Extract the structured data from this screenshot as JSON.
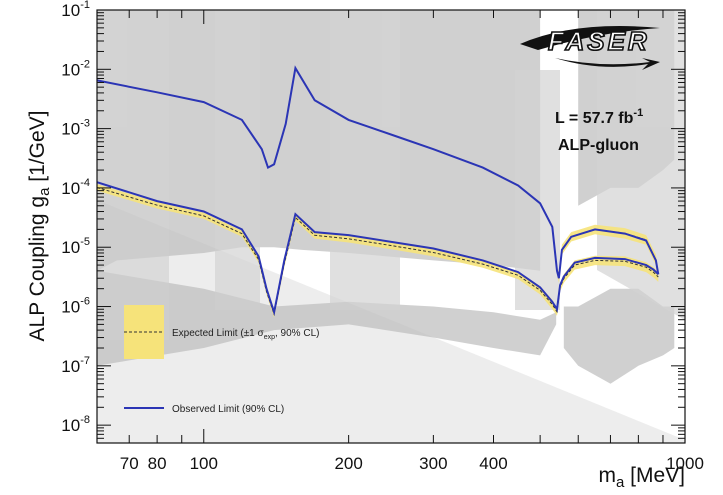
{
  "chart_data": {
    "type": "line",
    "title": "",
    "xlabel": "m",
    "xlabel_sub": "a",
    "xlabel_unit": " [MeV]",
    "ylabel": "ALP Coupling g",
    "ylabel_sub": "a",
    "ylabel_unit": " [1/GeV]",
    "x_scale": "log",
    "y_scale": "log",
    "xlim": [
      60,
      1000
    ],
    "ylim": [
      5e-09,
      0.1
    ],
    "x_tick_labels": [
      {
        "value": 70,
        "label": "70"
      },
      {
        "value": 80,
        "label": "80"
      },
      {
        "value": 100,
        "label": "100"
      },
      {
        "value": 200,
        "label": "200"
      },
      {
        "value": 300,
        "label": "300"
      },
      {
        "value": 400,
        "label": "400"
      },
      {
        "value": 1000,
        "label": "1000"
      }
    ],
    "y_tick_labels": [
      {
        "value": 1e-08,
        "mant": "10",
        "exp": "-8"
      },
      {
        "value": 1e-07,
        "mant": "10",
        "exp": "-7"
      },
      {
        "value": 1e-06,
        "mant": "10",
        "exp": "-6"
      },
      {
        "value": 1e-05,
        "mant": "10",
        "exp": "-5"
      },
      {
        "value": 0.0001,
        "mant": "10",
        "exp": "-4"
      },
      {
        "value": 0.001,
        "mant": "10",
        "exp": "-3"
      },
      {
        "value": 0.01,
        "mant": "10",
        "exp": "-2"
      },
      {
        "value": 0.1,
        "mant": "10",
        "exp": "-1"
      }
    ],
    "annotations": {
      "luminosity_prefix": "L = 57.7 fb",
      "luminosity_exp": "-1",
      "model": "ALP-gluon",
      "logo": "FASER"
    },
    "legend": [
      {
        "key": "expected",
        "text_a": "Expected Limit (±1 σ",
        "text_sub": "exp",
        "text_b": ", 90% CL)"
      },
      {
        "key": "observed",
        "text": "Observed Limit (90% CL)"
      }
    ],
    "colors": {
      "observed": "#2b35b5",
      "expected_band": "#f6e37a",
      "expected_line": "#333333",
      "excluded_region": "#c8c8c8"
    },
    "series": [
      {
        "name": "Observed Limit (90% CL)",
        "role": "upper",
        "x": [
          60,
          80,
          100,
          120,
          132,
          136,
          140,
          148,
          155,
          170,
          200,
          250,
          300,
          380,
          450,
          500,
          530,
          542,
          547,
          555,
          580,
          650,
          750,
          830,
          870,
          880
        ],
        "y": [
          0.0065,
          0.0041,
          0.0028,
          0.0014,
          0.00045,
          0.00022,
          0.00025,
          0.0012,
          0.0105,
          0.003,
          0.0014,
          0.00075,
          0.00045,
          0.00022,
          0.00011,
          5.5e-05,
          2.2e-05,
          4e-06,
          3e-06,
          9e-06,
          1.5e-05,
          2e-05,
          1.7e-05,
          1.3e-05,
          6e-06,
          3.5e-06
        ]
      },
      {
        "name": "Observed Limit (90% CL)",
        "role": "lower",
        "x": [
          60,
          80,
          100,
          120,
          130,
          135,
          140,
          147,
          155,
          170,
          200,
          250,
          300,
          380,
          450,
          500,
          530,
          542,
          550,
          560,
          590,
          650,
          750,
          830,
          860,
          880
        ],
        "y": [
          0.000125,
          6e-05,
          4e-05,
          2e-05,
          7e-06,
          2e-06,
          8e-07,
          6e-06,
          3.6e-05,
          1.8e-05,
          1.6e-05,
          1.2e-05,
          9.5e-06,
          6e-06,
          3.8e-06,
          2.1e-06,
          1.2e-06,
          9e-07,
          2.3e-06,
          3.2e-06,
          5.5e-06,
          6.6e-06,
          6.3e-06,
          5e-06,
          4.2e-06,
          3.5e-06
        ]
      },
      {
        "name": "Expected Limit (±1 σexp, 90% CL)",
        "role": "lower-band",
        "x": [
          60,
          80,
          100,
          120,
          130,
          135,
          140,
          147,
          155,
          170,
          200,
          250,
          300,
          380,
          450,
          500,
          530,
          542,
          550,
          560,
          590,
          650,
          750,
          830,
          860,
          880
        ],
        "y_low": [
          9e-05,
          4.5e-05,
          3e-05,
          1.5e-05,
          5.5e-06,
          1.6e-06,
          6.5e-07,
          4.6e-06,
          2.8e-05,
          1.4e-05,
          1.2e-05,
          9e-06,
          7e-06,
          4.5e-06,
          2.9e-06,
          1.6e-06,
          9e-07,
          7e-07,
          1.8e-06,
          2.5e-06,
          4.2e-06,
          5e-06,
          4.8e-06,
          3.8e-06,
          3.1e-06,
          2.6e-06
        ],
        "y_high": [
          0.000115,
          5.8e-05,
          3.8e-05,
          1.9e-05,
          7e-06,
          2e-06,
          8.5e-07,
          6e-06,
          3.6e-05,
          1.8e-05,
          1.6e-05,
          1.2e-05,
          9.5e-06,
          6e-06,
          3.9e-06,
          2.2e-06,
          1.3e-06,
          9.5e-07,
          2.5e-06,
          3.5e-06,
          6e-06,
          7.2e-06,
          7e-06,
          5.6e-06,
          4.6e-06,
          3.8e-06
        ]
      },
      {
        "name": "Expected Limit (±1 σexp, 90% CL)",
        "role": "upper-band",
        "x": [
          530,
          542,
          547,
          555,
          580,
          650,
          750,
          830,
          870,
          880
        ],
        "y_low": [
          1.9e-05,
          3.5e-06,
          2.5e-06,
          7.5e-06,
          1.25e-05,
          1.65e-05,
          1.4e-05,
          1.1e-05,
          5e-06,
          3e-06
        ],
        "y_high": [
          2.7e-05,
          5e-06,
          3.6e-06,
          1.1e-05,
          1.8e-05,
          2.4e-05,
          2.1e-05,
          1.6e-05,
          7.5e-06,
          4.2e-06
        ]
      }
    ],
    "excluded_regions": [
      {
        "x": [
          60,
          66,
          100,
          120,
          140,
          160,
          200,
          300,
          400,
          500
        ],
        "y_low": [
          4e-06,
          6e-06,
          8e-06,
          1e-05,
          1e-05,
          9e-06,
          8e-06,
          6e-06,
          5e-06,
          4e-06
        ],
        "y_high": [
          0.1,
          0.1,
          0.1,
          0.1,
          0.1,
          0.1,
          0.1,
          0.1,
          0.1,
          0.1
        ]
      },
      {
        "x": [
          60,
          100,
          140,
          200,
          300,
          400,
          500,
          540
        ],
        "y_low": [
          1e-07,
          2e-07,
          4e-07,
          5e-07,
          3e-07,
          2e-07,
          1.5e-07,
          5e-07
        ],
        "y_high": [
          4e-06,
          2e-06,
          1e-06,
          1.2e-06,
          1e-06,
          8e-07,
          6e-07,
          8e-07
        ]
      },
      {
        "x": [
          560,
          600,
          700,
          800,
          900,
          950
        ],
        "y_low": [
          2e-07,
          1e-07,
          5e-08,
          1e-07,
          1.5e-07,
          2e-07
        ],
        "y_high": [
          1e-06,
          1e-06,
          2e-06,
          2e-06,
          1e-06,
          1e-06
        ]
      },
      {
        "x": [
          600,
          700,
          800,
          900,
          950
        ],
        "y_low": [
          5e-05,
          0.0001,
          0.0001,
          0.0002,
          0.0003
        ],
        "y_high": [
          0.1,
          0.1,
          0.1,
          0.1,
          0.1
        ]
      }
    ]
  }
}
